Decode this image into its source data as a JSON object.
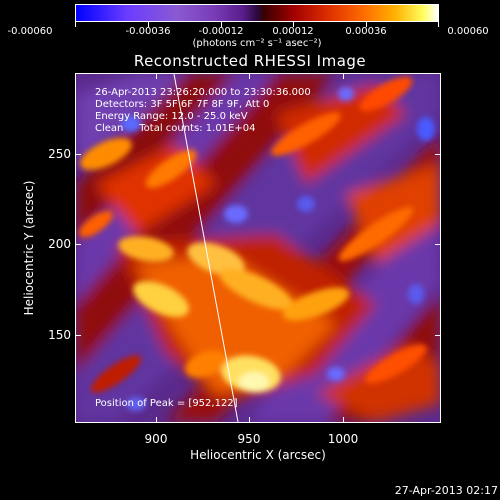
{
  "colorbar": {
    "tick_labels": [
      "-0.00060",
      "-0.00036",
      "-0.00012",
      "0.00012",
      "0.00036",
      "0.00060"
    ],
    "unit_label": "(photons cm⁻² s⁻¹ asec⁻²)"
  },
  "title": "Reconstructed RHESSI Image",
  "info": {
    "time_range": "26-Apr-2013 23:26:20.000 to 23:30:36.000",
    "detectors": "Detectors: 3F 5F 6F 7F 8F 9F, Att 0",
    "energy": "Energy Range: 12.0 - 25.0 keV",
    "clean": "Clean     Total counts: 1.01E+04",
    "peak": "Position of Peak = [952,122]"
  },
  "axes": {
    "y_label": "Heliocentric Y (arcsec)",
    "x_label": "Heliocentric X (arcsec)",
    "y_ticks": [
      "250",
      "200",
      "150"
    ],
    "x_ticks": [
      "900",
      "950",
      "1000"
    ],
    "x_range": [
      857,
      1043
    ],
    "y_range": [
      108,
      285
    ]
  },
  "timestamp": "27-Apr-2013 02:17",
  "colors": {
    "background": "#000000",
    "foreground": "#ffffff",
    "min": "#0000ff",
    "max": "#ffffff"
  }
}
